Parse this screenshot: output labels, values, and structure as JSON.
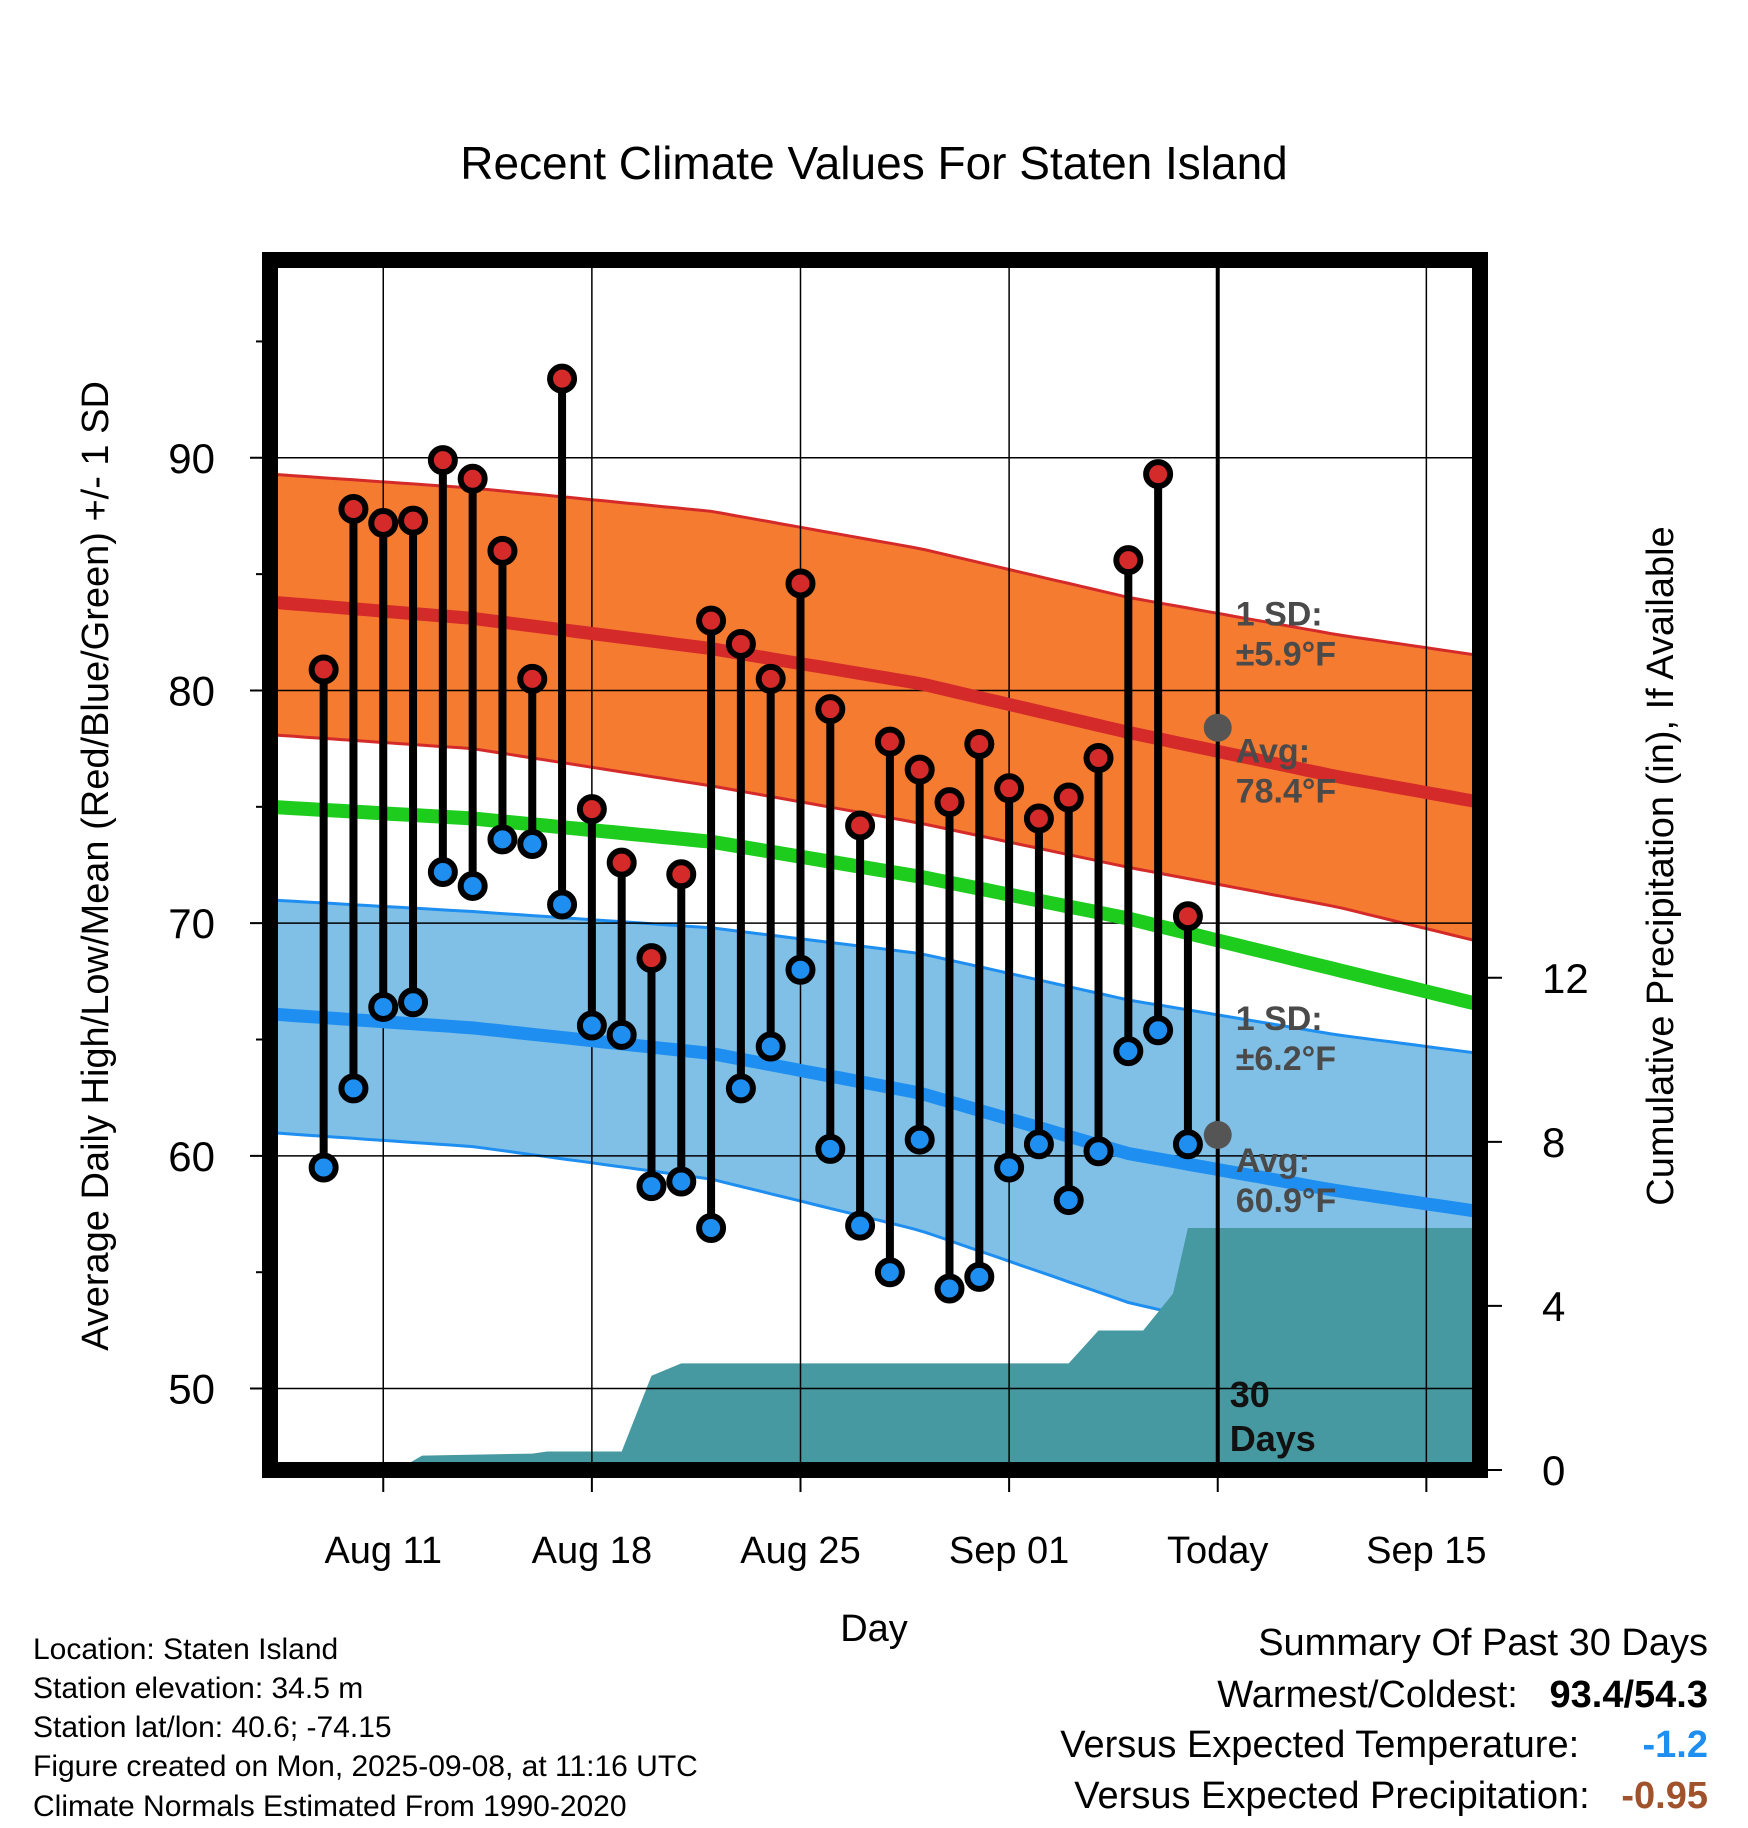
{
  "chart_data": {
    "type": "line",
    "title": "Recent Climate Values For Staten Island",
    "xlabel": "Day",
    "ylabel": "Average Daily High/Low/Mean (Red/Blue/Green) +/- 1 SD",
    "y2label": "Cumulative Precipitation (in), If Available",
    "ylim": [
      46.5,
      98.5
    ],
    "y2lim": [
      0,
      29.5
    ],
    "xlim": [
      -1.8,
      38.8
    ],
    "yticks": [
      50,
      60,
      70,
      80,
      90
    ],
    "y2ticks": [
      0,
      4,
      8,
      12
    ],
    "x_tick_labels": [
      {
        "day": 2,
        "label": "Aug 11"
      },
      {
        "day": 9,
        "label": "Aug 18"
      },
      {
        "day": 16,
        "label": "Aug 25"
      },
      {
        "day": 23,
        "label": "Sep 01"
      },
      {
        "day": 30,
        "label": "Today"
      },
      {
        "day": 37,
        "label": "Sep 15"
      }
    ],
    "day0_date": "Aug 09",
    "grid": true,
    "today_day": 30,
    "colors": {
      "high_band": "#f47b30",
      "high_line": "#d42a2a",
      "low_band": "#80c0e6",
      "low_line": "#1e8ff0",
      "mean_line": "#1ecc1e",
      "precip": "#4699a0",
      "high_point": "#d42a2a",
      "low_point": "#1e8ff0",
      "avg_marker": "#555555",
      "annotation": "#4a4a4a",
      "diff_temp": "#1e8ff0",
      "diff_precip": "#a0522d"
    },
    "normals": {
      "x": [
        -1.8,
        5,
        13,
        20,
        27,
        34,
        38.8
      ],
      "high_avg": [
        83.8,
        83.1,
        81.8,
        80.3,
        78.2,
        76.3,
        75.2
      ],
      "high_upper": [
        89.3,
        88.7,
        87.7,
        86.1,
        84.0,
        82.4,
        81.5
      ],
      "high_lower": [
        78.1,
        77.5,
        75.9,
        74.3,
        72.4,
        70.7,
        69.2
      ],
      "mean": [
        75.0,
        74.5,
        73.5,
        72.0,
        70.2,
        68.0,
        66.5
      ],
      "low_avg": [
        66.1,
        65.5,
        64.4,
        62.7,
        60.1,
        58.5,
        57.6
      ],
      "low_upper": [
        71.0,
        70.5,
        69.8,
        68.7,
        66.7,
        65.2,
        64.4
      ],
      "low_lower": [
        61.0,
        60.4,
        59.0,
        56.8,
        53.7,
        51.6,
        50.9
      ]
    },
    "series": [
      {
        "name": "High",
        "x": [
          0,
          1,
          2,
          3,
          4,
          5,
          6,
          7,
          8,
          9,
          10,
          11,
          12,
          13,
          14,
          15,
          16,
          17,
          18,
          19,
          20,
          21,
          22,
          23,
          24,
          25,
          26,
          27,
          28,
          29
        ],
        "values": [
          80.9,
          87.8,
          87.2,
          87.3,
          89.9,
          89.1,
          86.0,
          80.5,
          93.4,
          74.9,
          72.6,
          68.5,
          72.1,
          83.0,
          82.0,
          80.5,
          84.6,
          79.2,
          74.2,
          77.8,
          76.6,
          75.2,
          77.7,
          75.8,
          74.5,
          75.4,
          77.1,
          85.6,
          89.3,
          70.3
        ]
      },
      {
        "name": "Low",
        "x": [
          0,
          1,
          2,
          3,
          4,
          5,
          6,
          7,
          8,
          9,
          10,
          11,
          12,
          13,
          14,
          15,
          16,
          17,
          18,
          19,
          20,
          21,
          22,
          23,
          24,
          25,
          26,
          27,
          28,
          29
        ],
        "values": [
          59.5,
          62.9,
          66.4,
          66.6,
          72.2,
          71.6,
          73.6,
          73.4,
          70.8,
          65.6,
          65.2,
          58.7,
          58.9,
          56.9,
          62.9,
          64.7,
          68.0,
          60.3,
          57.0,
          55.0,
          60.7,
          54.3,
          54.8,
          59.5,
          60.5,
          58.1,
          60.2,
          64.5,
          65.4,
          60.5
        ]
      },
      {
        "name": "Cumulative Precipitation",
        "x": [
          2.6,
          3.3,
          7.0,
          7.5,
          9.0,
          10.0,
          11.0,
          12.0,
          16.0,
          23.0,
          24.0,
          25.0,
          26.0,
          26.5,
          27.5,
          28.5,
          29.0,
          38.8
        ],
        "values": [
          0.05,
          0.35,
          0.4,
          0.45,
          0.45,
          0.45,
          2.3,
          2.6,
          2.6,
          2.6,
          2.6,
          2.6,
          3.4,
          3.4,
          3.4,
          4.3,
          5.9,
          5.9
        ]
      }
    ],
    "today_markers": {
      "high_avg": 78.4,
      "low_avg": 60.9
    },
    "annotations": {
      "high_sd": [
        "1 SD:",
        "±5.9°F"
      ],
      "high_avg": [
        "Avg:",
        "78.4°F"
      ],
      "low_sd": [
        "1 SD:",
        "±6.2°F"
      ],
      "low_avg": [
        "Avg:",
        "60.9°F"
      ],
      "days": [
        "30",
        "Days"
      ]
    }
  },
  "metadata": {
    "location": "Location: Staten Island",
    "elevation": "Station elevation: 34.5 m",
    "latlon": "Station lat/lon: 40.6; -74.15",
    "created": "Figure created on Mon, 2025-09-08, at 11:16 UTC",
    "normals": "Climate Normals Estimated From 1990-2020"
  },
  "summary": {
    "title": "Summary Of Past 30 Days",
    "warmest_label": "Warmest/Coldest:",
    "warmest_value": "93.4/54.3",
    "temp_label": "Versus Expected Temperature:",
    "temp_value": "-1.2",
    "precip_label": "Versus Expected Precipitation:",
    "precip_value": "-0.95"
  }
}
